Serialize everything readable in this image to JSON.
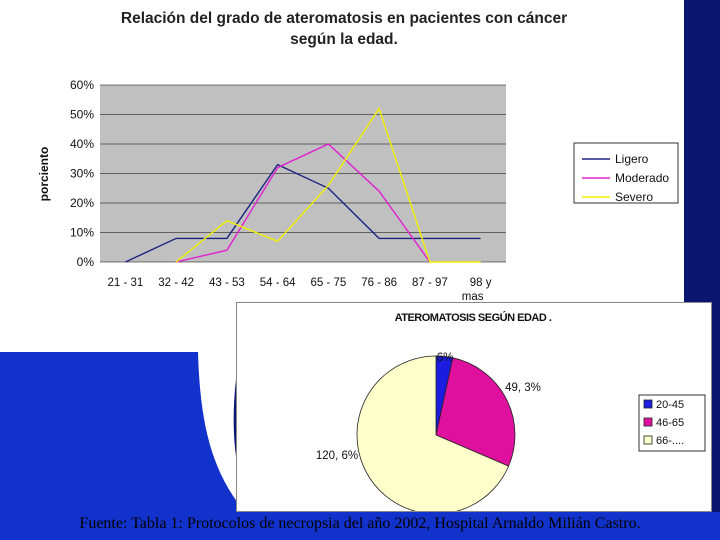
{
  "slide": {
    "caption": "Fuente: Tabla 1: Protocolos de necropsia del año 2002, Hospital Arnaldo Milián Castro.",
    "colors": {
      "background": "#ffffff",
      "accent_blue": "#1133cc",
      "accent_dark": "#0a1670"
    }
  },
  "chart_data": [
    {
      "type": "line",
      "title_line1": "Relación del grado de ateromatosis en pacientes con cáncer",
      "title_line2": "según la  edad.",
      "ylabel": "porciento",
      "xlabel": "",
      "categories": [
        "21 - 31",
        "32 - 42",
        "43 - 53",
        "54 - 64",
        "65 - 75",
        "76 - 86",
        "87 - 97",
        "98 y mas"
      ],
      "ylim": [
        0,
        60
      ],
      "yticks": [
        "0%",
        "10%",
        "20%",
        "30%",
        "40%",
        "50%",
        "60%"
      ],
      "grid": true,
      "legend_position": "right",
      "plot_background": "#c0c0c0",
      "series": [
        {
          "name": "Ligero",
          "color": "#1a237e",
          "values": [
            0,
            8,
            8,
            33,
            25,
            8,
            8,
            8
          ]
        },
        {
          "name": "Moderado",
          "color": "#e020d0",
          "values": [
            null,
            0,
            4,
            32,
            40,
            24,
            0,
            null
          ]
        },
        {
          "name": "Severo",
          "color": "#f0f000",
          "values": [
            null,
            0,
            14,
            7,
            26,
            52,
            0,
            0
          ]
        }
      ]
    },
    {
      "type": "pie",
      "title": "ATEROMATOSIS SEGÚN EDAD .",
      "legend_position": "right",
      "slices": [
        {
          "name": "20-45",
          "value": 6,
          "label": "6%",
          "color": "#1c1ce0"
        },
        {
          "name": "46-65",
          "value": 49.3,
          "label": "49, 3%",
          "color": "#e0109e"
        },
        {
          "name": "66-....",
          "value": 120.6,
          "label": "120, 6%",
          "color": "#ffffcc"
        }
      ]
    }
  ]
}
